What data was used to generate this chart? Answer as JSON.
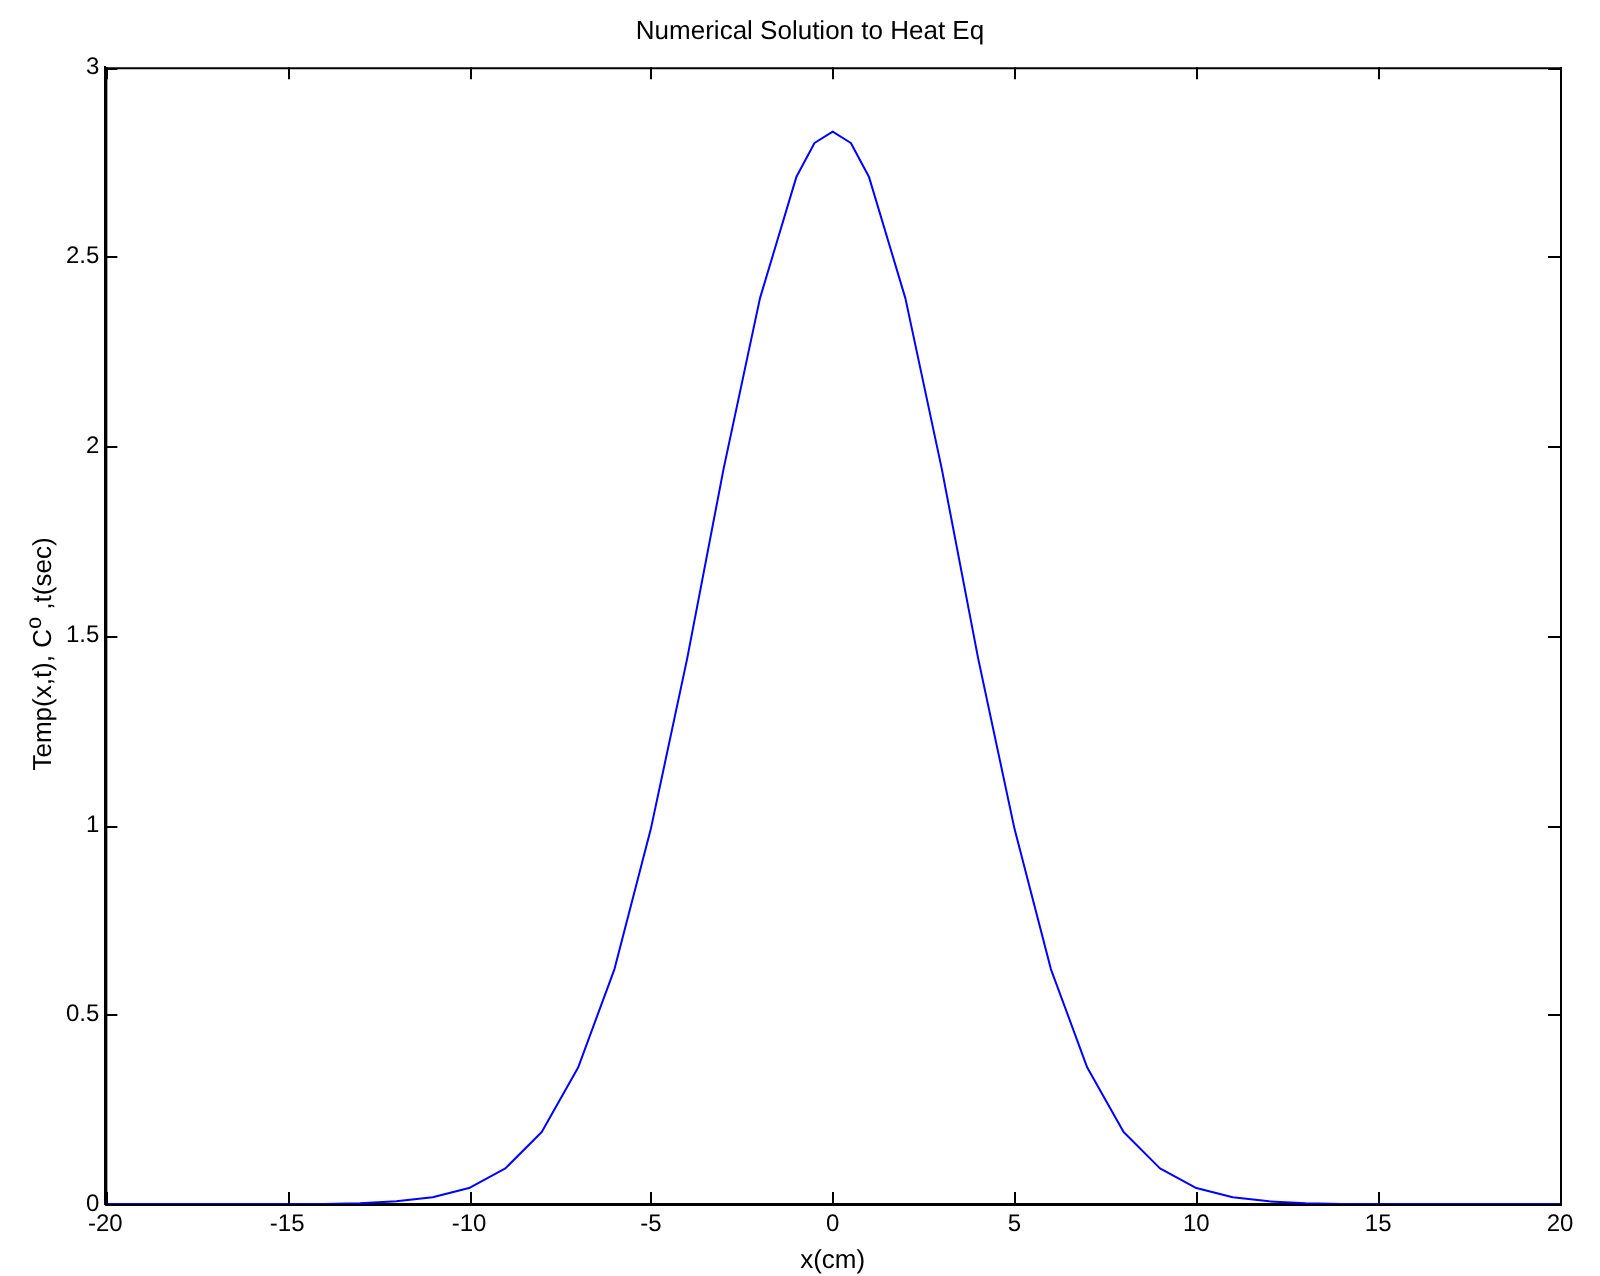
{
  "chart_data": {
    "type": "line",
    "title": "Numerical Solution to Heat Eq",
    "xlabel": "x(cm)",
    "ylabel": "Temp(x,t), C$^{o}$ ,t(sec)",
    "x": [
      -20,
      -16,
      -14,
      -13,
      -12,
      -11,
      -10,
      -9,
      -8,
      -7,
      -6,
      -5,
      -4,
      -3,
      -2,
      -1,
      -0.5,
      0,
      0.5,
      1,
      2,
      3,
      4,
      5,
      6,
      7,
      8,
      9,
      10,
      11,
      12,
      13,
      14,
      16,
      20
    ],
    "series": [
      {
        "color": "#0000ff",
        "values": [
          0,
          0,
          0,
          0.002,
          0.007,
          0.018,
          0.042,
          0.094,
          0.19,
          0.36,
          0.62,
          0.99,
          1.44,
          1.94,
          2.39,
          2.71,
          2.8,
          2.83,
          2.8,
          2.71,
          2.39,
          1.94,
          1.44,
          0.99,
          0.62,
          0.36,
          0.19,
          0.094,
          0.042,
          0.018,
          0.007,
          0.002,
          0,
          0,
          0
        ]
      }
    ],
    "xlim": [
      -20,
      20
    ],
    "xticks": [
      -20,
      -15,
      -10,
      -5,
      0,
      5,
      10,
      15,
      20
    ],
    "ylim": [
      0,
      3
    ],
    "yticks": [
      0,
      0.5,
      1,
      1.5,
      2,
      2.5,
      3
    ],
    "grid": false,
    "legend": false
  }
}
